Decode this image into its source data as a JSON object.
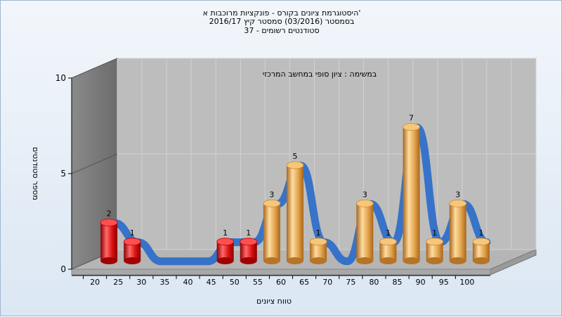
{
  "chart_data": {
    "type": "bar",
    "title_lines": [
      "היסטוגרמת ציונים בקורס - פונקציות מרוכבות א'",
      "בסמסטר (03/2016) סמסטר קיץ 2016/17",
      "סטודנטים רשומים - 37"
    ],
    "subtitle": "במשימה : ציון סופי במחשב המרכזי",
    "xlabel": "טווח ציונים",
    "ylabel": "מספר סטודנטים",
    "ylim": [
      0,
      10
    ],
    "yticks": [
      0,
      5,
      10
    ],
    "categories": [
      "20",
      "25",
      "30",
      "35",
      "40",
      "45",
      "50",
      "55",
      "60",
      "65",
      "70",
      "75",
      "80",
      "85",
      "90",
      "95",
      "100"
    ],
    "values": [
      2,
      1,
      0,
      0,
      0,
      1,
      1,
      3,
      5,
      1,
      0,
      3,
      1,
      7,
      1,
      3,
      1
    ],
    "bar_colors": {
      "fail": "#e01818",
      "pass": "#e8a545"
    },
    "curve_color": "#2f6fc8",
    "curve_zero_color": "#6e6e6e",
    "grid": true
  }
}
